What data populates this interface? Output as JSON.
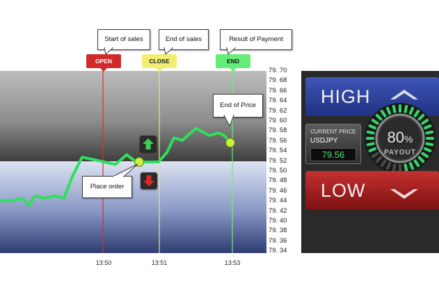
{
  "chart_data": {
    "type": "line",
    "yticks": [
      "79. 70",
      "79. 68",
      "79. 66",
      "79. 64",
      "79. 62",
      "79. 60",
      "79. 58",
      "79. 56",
      "79. 54",
      "79. 52",
      "79. 50",
      "79. 48",
      "79. 46",
      "79. 44",
      "79. 42",
      "79. 40",
      "79. 38",
      "79. 36",
      "79. 34"
    ],
    "ylim": [
      79.34,
      79.7
    ],
    "xticks": [
      "13:50",
      "13:51",
      "13:53"
    ],
    "series": [
      {
        "color": "#2fe05c",
        "points": [
          [
            0,
            79.44
          ],
          [
            18,
            79.44
          ],
          [
            32,
            79.445
          ],
          [
            42,
            79.43
          ],
          [
            50,
            79.45
          ],
          [
            64,
            79.445
          ],
          [
            78,
            79.45
          ],
          [
            92,
            79.445
          ],
          [
            104,
            79.49
          ],
          [
            118,
            79.53
          ],
          [
            134,
            79.525
          ],
          [
            150,
            79.52
          ],
          [
            166,
            79.515
          ],
          [
            182,
            79.535
          ],
          [
            196,
            79.52
          ],
          [
            210,
            79.52
          ],
          [
            228,
            79.52
          ],
          [
            240,
            79.54
          ],
          [
            250,
            79.57
          ],
          [
            262,
            79.565
          ],
          [
            282,
            79.59
          ],
          [
            300,
            79.575
          ],
          [
            314,
            79.58
          ],
          [
            322,
            79.575
          ],
          [
            332,
            79.56
          ]
        ]
      }
    ],
    "markers": {
      "open": "OPEN",
      "close": "CLOSE",
      "end": "END"
    }
  },
  "callouts": {
    "start_of_sales": "Start of sales",
    "end_of_sales": "End of sales",
    "result_of_payment": "Result of Payment",
    "end_of_price": "End of Price",
    "place_order": "Place order"
  },
  "panel": {
    "high_label": "HIGH",
    "low_label": "LOW",
    "current_price_title": "CURRENT PRICE",
    "pair": "USDJPY",
    "current_price": "79.56",
    "payout_percent": "80",
    "payout_unit": "%",
    "payout_label": "PAYOUT"
  },
  "colors": {
    "line": "#2fe05c",
    "open": "#d02b2b",
    "close": "#f2ee74",
    "end": "#66ec79",
    "high": "#2d43a0",
    "low": "#a82020"
  }
}
